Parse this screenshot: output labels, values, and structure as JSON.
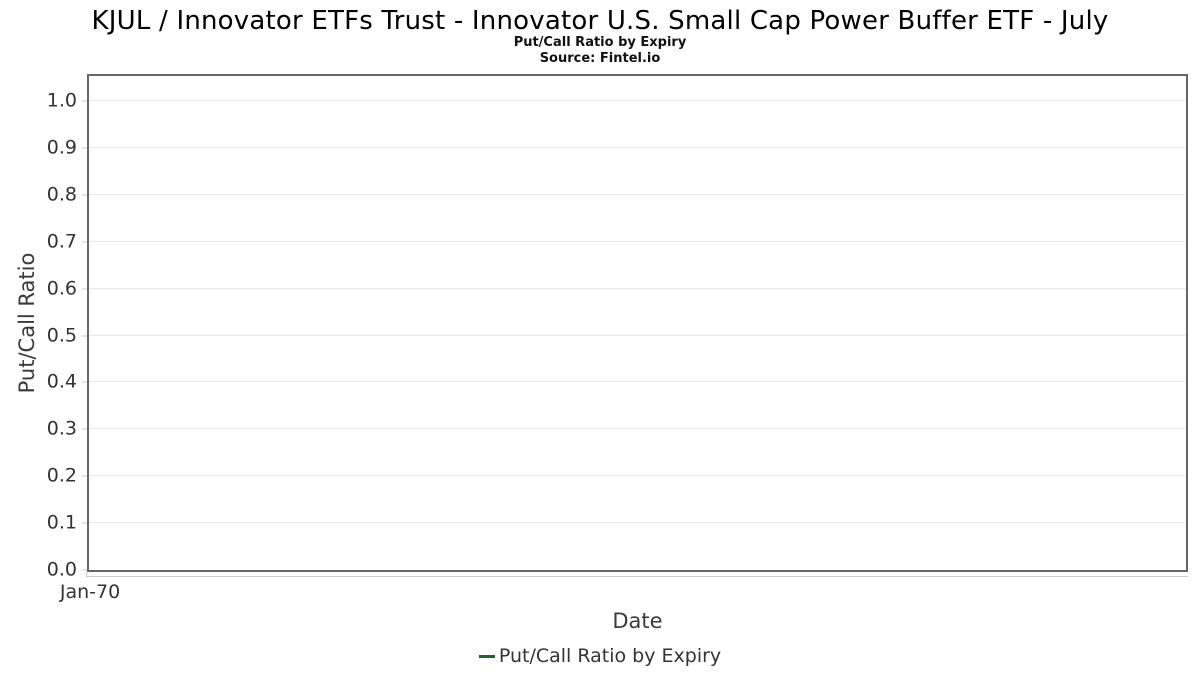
{
  "chart_data": {
    "type": "line",
    "title": "KJUL / Innovator ETFs Trust - Innovator U.S. Small Cap Power Buffer ETF - July",
    "subtitle": "Put/Call Ratio by Expiry",
    "source": "Source: Fintel.io",
    "xlabel": "Date",
    "ylabel": "Put/Call Ratio",
    "ylim": [
      0.0,
      1.06
    ],
    "yticks": [
      "0.0",
      "0.1",
      "0.2",
      "0.3",
      "0.4",
      "0.5",
      "0.6",
      "0.7",
      "0.8",
      "0.9",
      "1.0"
    ],
    "xticklabels": [
      "Jan-70"
    ],
    "grid": true,
    "legend_position": "bottom",
    "series": [
      {
        "name": "Put/Call Ratio by Expiry",
        "color": "#2a5f34",
        "x": [],
        "values": []
      }
    ],
    "colors": {
      "grid": "#e9e9e9",
      "plot_border": "#666666",
      "tick_mark": "#c9c9c9",
      "tick_text": "#333333",
      "axis_label_text": "#3a3a3a",
      "title_text": "#000000"
    }
  }
}
